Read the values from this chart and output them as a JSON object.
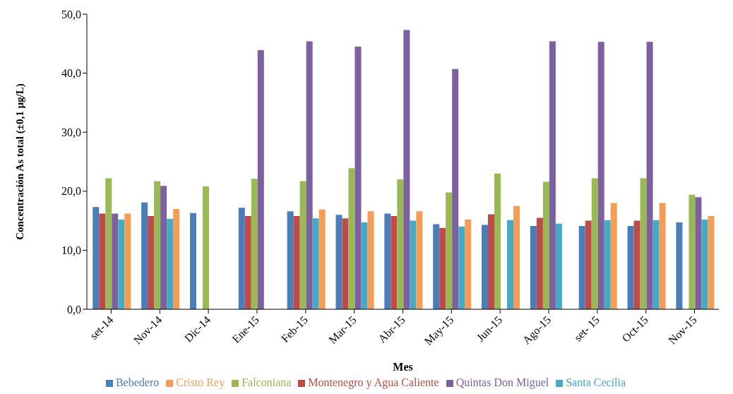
{
  "chart_data": {
    "type": "bar",
    "xlabel": "Mes",
    "ylabel": "Concentración As total  (±0,1 µg/L)",
    "categories": [
      "set-14",
      "Nov-14",
      "Dic-14",
      "Ene-15",
      "Feb-15",
      "Mar-15",
      "Abr-15",
      "May-15",
      "Jun-15",
      "Ago-15",
      "set- 15",
      "Oct-15",
      "Nov-15"
    ],
    "series": [
      {
        "name": "Bebedero",
        "color": "#4a7ebb",
        "values": [
          17.3,
          18.1,
          16.3,
          17.2,
          16.6,
          16.0,
          16.2,
          14.4,
          14.3,
          14.1,
          14.1,
          14.1,
          14.7
        ]
      },
      {
        "name": "Montenegro y Agua Caliente",
        "color": "#be4b48",
        "values": [
          16.2,
          15.8,
          null,
          15.8,
          15.8,
          15.4,
          15.8,
          13.8,
          16.1,
          15.5,
          15.0,
          15.0,
          null
        ]
      },
      {
        "name": "Falconiana",
        "color": "#98b954",
        "values": [
          22.2,
          21.7,
          20.8,
          22.1,
          21.7,
          23.9,
          22.0,
          19.8,
          23.0,
          21.6,
          22.2,
          22.2,
          19.4
        ]
      },
      {
        "name": "Quintas Don Miguel",
        "color": "#7d60a0",
        "values": [
          16.2,
          20.9,
          null,
          43.9,
          45.4,
          44.5,
          47.3,
          40.7,
          null,
          45.4,
          45.3,
          45.3,
          19.0
        ]
      },
      {
        "name": "Santa Cecilia",
        "color": "#46aac5",
        "values": [
          15.2,
          15.3,
          null,
          null,
          15.4,
          14.7,
          15.0,
          14.0,
          15.1,
          14.5,
          15.1,
          15.1,
          15.2
        ]
      },
      {
        "name": "Cristo Rey",
        "color": "#f59d56",
        "values": [
          16.2,
          17.0,
          null,
          null,
          16.9,
          16.6,
          16.6,
          15.2,
          17.5,
          null,
          18.0,
          18.0,
          15.8
        ]
      }
    ],
    "ylim": [
      0,
      50
    ],
    "yticks": [
      {
        "value": 0,
        "label": "0,0"
      },
      {
        "value": 10,
        "label": "10,0"
      },
      {
        "value": 20,
        "label": "20,0"
      },
      {
        "value": 30,
        "label": "30,0"
      },
      {
        "value": 40,
        "label": "40,0"
      },
      {
        "value": 50,
        "label": "50,0"
      }
    ],
    "grid": false,
    "legend": "bottom"
  }
}
